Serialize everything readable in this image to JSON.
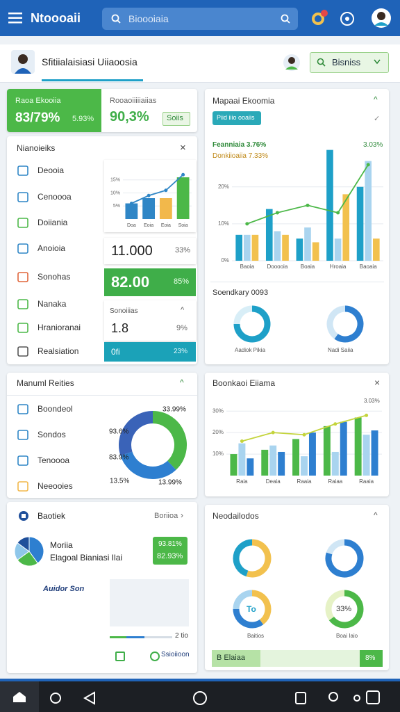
{
  "topbar": {
    "title": "Ntoooaii",
    "search": "Bioooiaia"
  },
  "header": {
    "title": "Sfitiialaisiasi Uiiaoosia",
    "button": "Bisniss"
  },
  "summary": {
    "primary": {
      "label": "Raoa Ekooiia",
      "value": "83/79%",
      "change": "5.93%"
    },
    "secondary": {
      "label": "Rooaoiiiiiaiias",
      "value": "90,3%",
      "badge": "Soiis"
    }
  },
  "indicators": {
    "title": "Nianoieiks",
    "items": [
      "Deooia",
      "Cenoooa",
      "Doiiania",
      "Anoioia",
      "Sonohas",
      "Nanaka",
      "Hranioranai",
      "Realsiation"
    ],
    "mini_chart": {
      "type": "bar",
      "categories": [
        "Doa",
        "Eoia",
        "Eoia",
        "Soia"
      ],
      "series": [
        {
          "color": [
            "#2f86c6",
            "#2f86c6",
            "#f2b84b",
            "#4cb848"
          ],
          "values": [
            6,
            8,
            8,
            16
          ]
        }
      ],
      "line": {
        "color": "#2f86c6",
        "values": [
          6,
          9,
          11,
          17
        ]
      },
      "ylim": [
        0,
        20
      ],
      "yticks": [
        {
          "value": 5,
          "label": "5%"
        },
        {
          "value": 10,
          "label": "10%"
        },
        {
          "value": 15,
          "label": "15%"
        }
      ]
    },
    "tiles": [
      {
        "value": "11.000",
        "change": "33%"
      },
      {
        "value": "82.00",
        "change": "85%"
      },
      {
        "label": "Sonoiiias",
        "value": "1.8",
        "change": "9%"
      },
      {
        "value": "0fi",
        "change": "23%"
      }
    ]
  },
  "economy": {
    "title": "Mapaai Ekoomia",
    "button": "Piid iiio ooaiis",
    "legend": [
      "Feanniaia 3.76%",
      "Donkiioaiia 7.33%",
      "3.03%"
    ],
    "chart": {
      "type": "bar",
      "categories": [
        "Baoia",
        "Dooooia",
        "Boaia",
        "Hroaia",
        "Baoaia"
      ],
      "series": [
        {
          "color": "#1ea0c8",
          "values": [
            7,
            14,
            6,
            30,
            20
          ]
        },
        {
          "color": "#a9d4ef",
          "values": [
            7,
            8,
            9,
            6,
            27
          ]
        },
        {
          "color": "#f2c14e",
          "values": [
            7,
            7,
            5,
            18,
            6
          ]
        }
      ],
      "line": {
        "color": "#4cb848",
        "values": [
          10,
          13,
          15,
          13,
          26
        ]
      },
      "ylim": [
        0,
        32
      ],
      "yticks": [
        {
          "value": 0,
          "label": "0%"
        },
        {
          "value": 10,
          "label": "10%"
        },
        {
          "value": 20,
          "label": "20%"
        }
      ]
    },
    "secondary": {
      "title": "Soendkary 0093",
      "donuts": [
        {
          "values": [
            75,
            25
          ],
          "colors": [
            "#1ea0c8",
            "#d8eef7"
          ]
        },
        {
          "values": [
            60,
            40
          ],
          "colors": [
            "#2e7fd0",
            "#d0e6f5"
          ]
        }
      ],
      "labels": [
        "Aadiok Pikia",
        "Nadi Saiia"
      ]
    }
  },
  "regions": {
    "title": "Manuml Reities",
    "items": [
      "Boondeol",
      "Sondos",
      "Tenoooa",
      "Neeooies"
    ],
    "donut": {
      "values": [
        38,
        32,
        30
      ],
      "colors": [
        "#4cb848",
        "#2e7fd0",
        "#3a63b8"
      ]
    },
    "labels": [
      "93.6%",
      "83.9%",
      "13.5%",
      "33.99%",
      "13.99%"
    ]
  },
  "balance": {
    "title": "Boonkaoi Eiiama",
    "legend": "3.03%",
    "chart": {
      "type": "bar",
      "categories": [
        "Raia",
        "Deaia",
        "Raaia",
        "Raiaa",
        "Raaia"
      ],
      "series": [
        {
          "color": "#4cb848",
          "values": [
            10,
            12,
            17,
            23,
            27
          ]
        },
        {
          "color": "#a9d4ef",
          "values": [
            15,
            14,
            9,
            11,
            19
          ]
        },
        {
          "color": "#2e7fd0",
          "values": [
            8,
            11,
            20,
            25,
            21
          ]
        }
      ],
      "line": {
        "color": "#c4d43c",
        "values": [
          16,
          20,
          19,
          24,
          28
        ]
      },
      "ylim": [
        0,
        32
      ],
      "yticks": [
        {
          "value": 10,
          "label": "10%"
        },
        {
          "value": 20,
          "label": "20%"
        },
        {
          "value": 30,
          "label": "30%"
        }
      ]
    }
  },
  "report": {
    "title": "Baotiek",
    "link": "Boriioa",
    "pie": {
      "values": [
        40,
        25,
        20,
        15
      ],
      "colors": [
        "#2e7fd0",
        "#4cb848",
        "#8fc7ea",
        "#1f4f9a"
      ]
    },
    "name": "Moriia",
    "subtitle": "Elagoal Bianiasi Ilai",
    "tile": [
      "93.81%",
      "82.93%"
    ],
    "section": "Auidor Son",
    "progress_label": "2 tio",
    "footer": "Ssioiioon"
  },
  "nodes": {
    "title": "Neodailodos",
    "donuts": [
      {
        "values": [
          55,
          45
        ],
        "colors": [
          "#f2c14e",
          "#1ea0c8"
        ]
      },
      {
        "values": [
          80,
          20
        ],
        "colors": [
          "#2e7fd0",
          "#d0e6f5"
        ]
      },
      {
        "values": [
          40,
          35,
          25
        ],
        "colors": [
          "#f2c14e",
          "#2e7fd0",
          "#a9d4ef"
        ]
      },
      {
        "values": [
          65,
          35
        ],
        "colors": [
          "#4cb848",
          "#e6f2c6"
        ]
      }
    ],
    "labels": [
      "Baitios",
      "Boai Iaio"
    ],
    "inner": [
      "To",
      "33%"
    ],
    "progress": {
      "label": "B Elaiaa",
      "value": "8%"
    }
  }
}
